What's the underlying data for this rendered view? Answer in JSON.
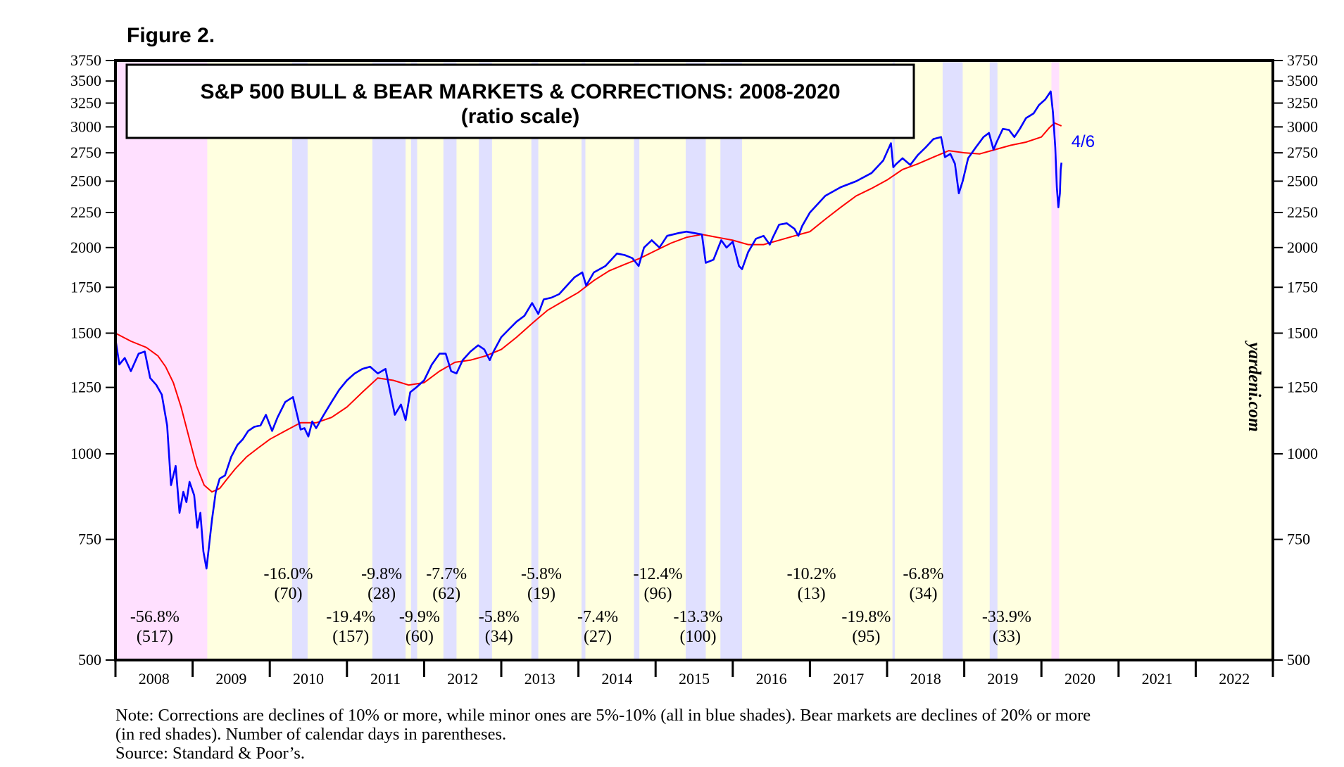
{
  "figure_label": "Figure 2.",
  "notes": {
    "line1": "Note: Corrections are declines of 10% or more, while minor ones are 5%-10% (all in blue shades).  Bear markets are declines of 20% or more",
    "line2": "(in red shades). Number of calendar days in parentheses.",
    "source": "Source: Standard & Poor’s."
  },
  "colors": {
    "plot_background": "#ffffe0",
    "bear_shade": "#ffe0ff",
    "correction_shade": "#e0e0ff",
    "price_line": "#0000ff",
    "moving_average": "#ff0000"
  },
  "chart_data": {
    "type": "line",
    "title": "S&P 500 BULL & BEAR MARKETS & CORRECTIONS: 2008-2020",
    "subtitle": "(ratio scale)",
    "xlabel": "",
    "ylabel": "",
    "yscale": "log",
    "ylim": [
      500,
      3750
    ],
    "xlim": [
      2008.0,
      2023.0
    ],
    "y_ticks": [
      500,
      750,
      1000,
      1250,
      1500,
      1750,
      2000,
      2250,
      2500,
      2750,
      3000,
      3250,
      3500,
      3750
    ],
    "x_tick_labels": [
      "2008",
      "2009",
      "2010",
      "2011",
      "2012",
      "2013",
      "2014",
      "2015",
      "2016",
      "2017",
      "2018",
      "2019",
      "2020",
      "2021",
      "2022"
    ],
    "watermark": "yardeni.com",
    "last_label": "4/6",
    "shaded_periods": [
      {
        "kind": "bear",
        "start": 2008.0,
        "end": 2009.19
      },
      {
        "kind": "correction",
        "start": 2010.29,
        "end": 2010.49
      },
      {
        "kind": "correction",
        "start": 2011.33,
        "end": 2011.76
      },
      {
        "kind": "correction",
        "start": 2011.83,
        "end": 2011.91
      },
      {
        "kind": "correction",
        "start": 2012.25,
        "end": 2012.42
      },
      {
        "kind": "correction",
        "start": 2012.71,
        "end": 2012.88
      },
      {
        "kind": "correction",
        "start": 2013.39,
        "end": 2013.48
      },
      {
        "kind": "correction",
        "start": 2014.04,
        "end": 2014.09
      },
      {
        "kind": "correction",
        "start": 2014.72,
        "end": 2014.79
      },
      {
        "kind": "correction",
        "start": 2015.39,
        "end": 2015.65
      },
      {
        "kind": "correction",
        "start": 2015.84,
        "end": 2016.12
      },
      {
        "kind": "correction",
        "start": 2018.07,
        "end": 2018.1
      },
      {
        "kind": "correction",
        "start": 2018.72,
        "end": 2018.98
      },
      {
        "kind": "correction",
        "start": 2019.33,
        "end": 2019.43
      },
      {
        "kind": "bear",
        "start": 2020.13,
        "end": 2020.23
      }
    ],
    "annotations": [
      {
        "pct": "-56.8%",
        "days": "(517)",
        "x": 2008.51,
        "row": "low"
      },
      {
        "pct": "-16.0%",
        "days": "(70)",
        "x": 2010.24,
        "row": "high"
      },
      {
        "pct": "-19.4%",
        "days": "(157)",
        "x": 2011.05,
        "row": "low"
      },
      {
        "pct": "-9.8%",
        "days": "(28)",
        "x": 2011.45,
        "row": "high"
      },
      {
        "pct": "-9.9%",
        "days": "(60)",
        "x": 2011.94,
        "row": "low"
      },
      {
        "pct": "-7.7%",
        "days": "(62)",
        "x": 2012.29,
        "row": "high"
      },
      {
        "pct": "-5.8%",
        "days": "(34)",
        "x": 2012.97,
        "row": "low"
      },
      {
        "pct": "-5.8%",
        "days": "(19)",
        "x": 2013.52,
        "row": "high"
      },
      {
        "pct": "-7.4%",
        "days": "(27)",
        "x": 2014.25,
        "row": "low"
      },
      {
        "pct": "-12.4%",
        "days": "(96)",
        "x": 2015.03,
        "row": "high"
      },
      {
        "pct": "-13.3%",
        "days": "(100)",
        "x": 2015.55,
        "row": "low"
      },
      {
        "pct": "-10.2%",
        "days": "(13)",
        "x": 2017.02,
        "row": "high"
      },
      {
        "pct": "-19.8%",
        "days": "(95)",
        "x": 2017.73,
        "row": "low"
      },
      {
        "pct": "-6.8%",
        "days": "(34)",
        "x": 2018.47,
        "row": "high"
      },
      {
        "pct": "-33.9%",
        "days": "(33)",
        "x": 2019.55,
        "row": "low"
      }
    ],
    "series": [
      {
        "name": "S&P 500",
        "x": [
          2008.0,
          2008.05,
          2008.12,
          2008.2,
          2008.3,
          2008.38,
          2008.45,
          2008.53,
          2008.6,
          2008.67,
          2008.72,
          2008.78,
          2008.83,
          2008.88,
          2008.92,
          2008.96,
          2009.02,
          2009.06,
          2009.1,
          2009.14,
          2009.18,
          2009.25,
          2009.3,
          2009.35,
          2009.42,
          2009.5,
          2009.58,
          2009.65,
          2009.72,
          2009.8,
          2009.88,
          2009.95,
          2010.03,
          2010.1,
          2010.2,
          2010.3,
          2010.4,
          2010.45,
          2010.5,
          2010.55,
          2010.6,
          2010.7,
          2010.8,
          2010.9,
          2011.0,
          2011.1,
          2011.2,
          2011.3,
          2011.4,
          2011.5,
          2011.58,
          2011.62,
          2011.7,
          2011.76,
          2011.82,
          2011.9,
          2012.0,
          2012.1,
          2012.2,
          2012.28,
          2012.35,
          2012.42,
          2012.5,
          2012.6,
          2012.7,
          2012.78,
          2012.85,
          2012.9,
          2013.0,
          2013.1,
          2013.2,
          2013.3,
          2013.4,
          2013.48,
          2013.55,
          2013.65,
          2013.75,
          2013.85,
          2013.95,
          2014.05,
          2014.1,
          2014.2,
          2014.35,
          2014.5,
          2014.6,
          2014.7,
          2014.78,
          2014.85,
          2014.95,
          2015.05,
          2015.15,
          2015.3,
          2015.4,
          2015.5,
          2015.6,
          2015.65,
          2015.75,
          2015.85,
          2015.92,
          2016.0,
          2016.08,
          2016.12,
          2016.2,
          2016.3,
          2016.4,
          2016.48,
          2016.52,
          2016.6,
          2016.7,
          2016.8,
          2016.85,
          2016.9,
          2017.0,
          2017.2,
          2017.4,
          2017.6,
          2017.8,
          2017.95,
          2018.05,
          2018.08,
          2018.12,
          2018.2,
          2018.3,
          2018.4,
          2018.5,
          2018.6,
          2018.7,
          2018.75,
          2018.82,
          2018.88,
          2018.93,
          2018.98,
          2019.05,
          2019.15,
          2019.25,
          2019.32,
          2019.38,
          2019.42,
          2019.5,
          2019.58,
          2019.65,
          2019.72,
          2019.8,
          2019.9,
          2019.97,
          2020.05,
          2020.12,
          2020.15,
          2020.18,
          2020.2,
          2020.22,
          2020.24,
          2020.25,
          2020.26
        ],
        "y": [
          1470,
          1350,
          1380,
          1320,
          1400,
          1410,
          1290,
          1260,
          1220,
          1100,
          900,
          960,
          820,
          880,
          850,
          910,
          870,
          780,
          820,
          720,
          680,
          800,
          880,
          920,
          930,
          990,
          1030,
          1050,
          1080,
          1095,
          1100,
          1140,
          1080,
          1130,
          1190,
          1210,
          1085,
          1090,
          1060,
          1115,
          1090,
          1140,
          1190,
          1240,
          1280,
          1310,
          1330,
          1340,
          1310,
          1330,
          1200,
          1140,
          1180,
          1120,
          1230,
          1250,
          1280,
          1350,
          1400,
          1400,
          1320,
          1310,
          1370,
          1410,
          1440,
          1420,
          1370,
          1410,
          1480,
          1520,
          1560,
          1590,
          1660,
          1600,
          1680,
          1690,
          1710,
          1760,
          1810,
          1840,
          1760,
          1840,
          1880,
          1960,
          1950,
          1930,
          1880,
          2000,
          2050,
          2000,
          2080,
          2100,
          2110,
          2100,
          2090,
          1900,
          1920,
          2050,
          2000,
          2040,
          1880,
          1860,
          1970,
          2060,
          2080,
          2020,
          2070,
          2160,
          2170,
          2130,
          2080,
          2150,
          2250,
          2380,
          2450,
          2500,
          2570,
          2680,
          2840,
          2620,
          2650,
          2700,
          2640,
          2730,
          2800,
          2880,
          2900,
          2710,
          2740,
          2650,
          2400,
          2500,
          2700,
          2800,
          2900,
          2940,
          2780,
          2850,
          2980,
          2970,
          2900,
          2980,
          3090,
          3140,
          3230,
          3290,
          3380,
          3150,
          2800,
          2450,
          2290,
          2400,
          2600,
          2660
        ]
      },
      {
        "name": "200-day moving average",
        "x": [
          2008.0,
          2008.2,
          2008.4,
          2008.55,
          2008.65,
          2008.75,
          2008.85,
          2008.95,
          2009.05,
          2009.15,
          2009.25,
          2009.35,
          2009.45,
          2009.55,
          2009.7,
          2009.85,
          2010.0,
          2010.2,
          2010.4,
          2010.6,
          2010.8,
          2011.0,
          2011.2,
          2011.4,
          2011.6,
          2011.8,
          2012.0,
          2012.2,
          2012.4,
          2012.6,
          2012.8,
          2013.0,
          2013.2,
          2013.4,
          2013.6,
          2013.8,
          2014.0,
          2014.2,
          2014.4,
          2014.6,
          2014.8,
          2015.0,
          2015.2,
          2015.4,
          2015.6,
          2015.8,
          2016.0,
          2016.2,
          2016.4,
          2016.6,
          2016.8,
          2017.0,
          2017.2,
          2017.4,
          2017.6,
          2017.8,
          2018.0,
          2018.2,
          2018.4,
          2018.6,
          2018.8,
          2019.0,
          2019.2,
          2019.4,
          2019.6,
          2019.8,
          2020.0,
          2020.1,
          2020.17,
          2020.26
        ],
        "y": [
          1500,
          1460,
          1430,
          1390,
          1340,
          1270,
          1170,
          1060,
          960,
          900,
          880,
          890,
          920,
          950,
          990,
          1020,
          1050,
          1080,
          1110,
          1110,
          1130,
          1170,
          1230,
          1290,
          1280,
          1260,
          1270,
          1320,
          1360,
          1370,
          1390,
          1420,
          1480,
          1550,
          1620,
          1670,
          1720,
          1790,
          1850,
          1890,
          1930,
          1980,
          2030,
          2070,
          2090,
          2070,
          2050,
          2020,
          2020,
          2050,
          2080,
          2110,
          2200,
          2290,
          2380,
          2440,
          2510,
          2600,
          2650,
          2710,
          2770,
          2750,
          2740,
          2780,
          2820,
          2850,
          2900,
          2990,
          3040,
          3010
        ]
      }
    ]
  }
}
